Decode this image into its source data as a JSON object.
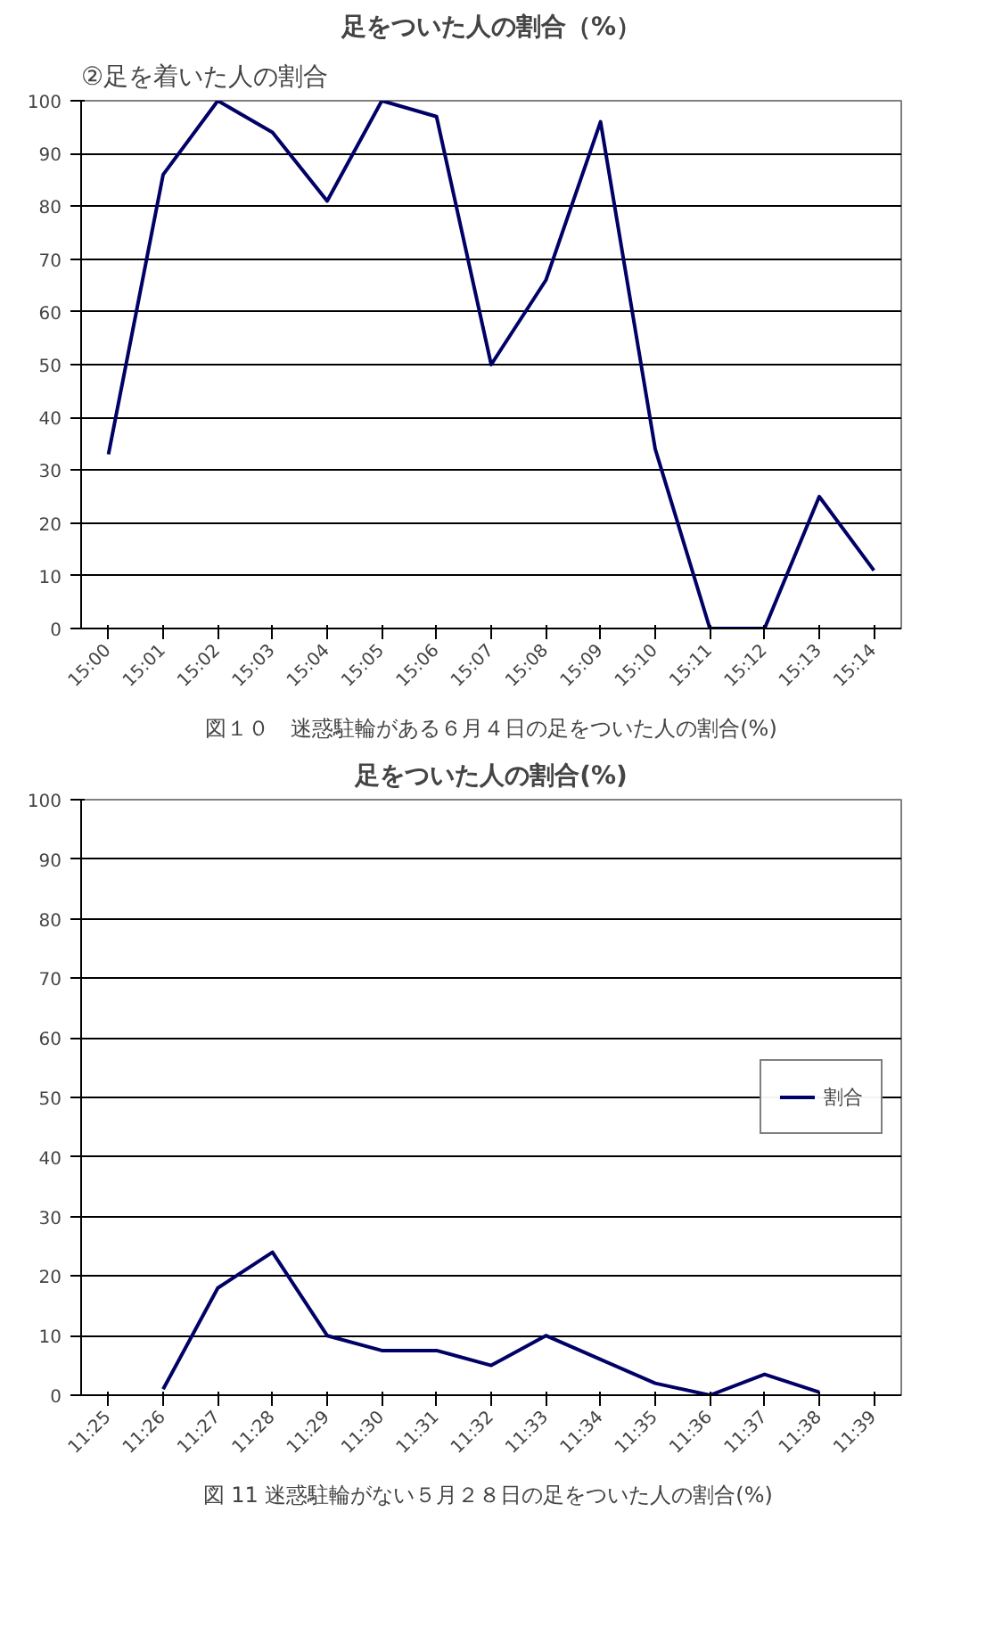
{
  "chart_data": [
    {
      "type": "line",
      "title": "足をついた人の割合（%）",
      "annotations": [
        "②足を着いた人の割合",
        "図１０　迷惑駐輪がある６月４日の足をついた人の割合(%)"
      ],
      "categories": [
        "15:00",
        "15:01",
        "15:02",
        "15:03",
        "15:04",
        "15:05",
        "15:06",
        "15:07",
        "15:08",
        "15:09",
        "15:10",
        "15:11",
        "15:12",
        "15:13",
        "15:14"
      ],
      "series": [
        {
          "color": "#000066",
          "values": [
            33,
            86,
            100,
            94,
            81,
            100,
            97,
            50,
            66,
            96,
            34,
            0,
            0,
            25,
            11
          ]
        }
      ],
      "ylim": [
        0,
        100
      ],
      "yticks": [
        0,
        10,
        20,
        30,
        40,
        50,
        60,
        70,
        80,
        90,
        100
      ],
      "grid": "y",
      "legend": false,
      "marker": "none"
    },
    {
      "type": "line",
      "title": "足をついた人の割合(%)",
      "annotations": [
        "図 11  迷惑駐輪がない５月２８日の足をついた人の割合(%)"
      ],
      "categories": [
        "11:25",
        "11:26",
        "11:27",
        "11:28",
        "11:29",
        "11:30",
        "11:31",
        "11:32",
        "11:33",
        "11:34",
        "11:35",
        "11:36",
        "11:37",
        "11:38",
        "11:39"
      ],
      "series": [
        {
          "name": "割合",
          "color": "#000066",
          "values": [
            null,
            1,
            18,
            24,
            10,
            7.5,
            7.5,
            5,
            10,
            6,
            2,
            0,
            3.5,
            0.5,
            null
          ]
        }
      ],
      "ylim": [
        0,
        100
      ],
      "yticks": [
        0,
        10,
        20,
        30,
        40,
        50,
        60,
        70,
        80,
        90,
        100
      ],
      "grid": "y",
      "legend": "right",
      "marker": "none"
    }
  ]
}
